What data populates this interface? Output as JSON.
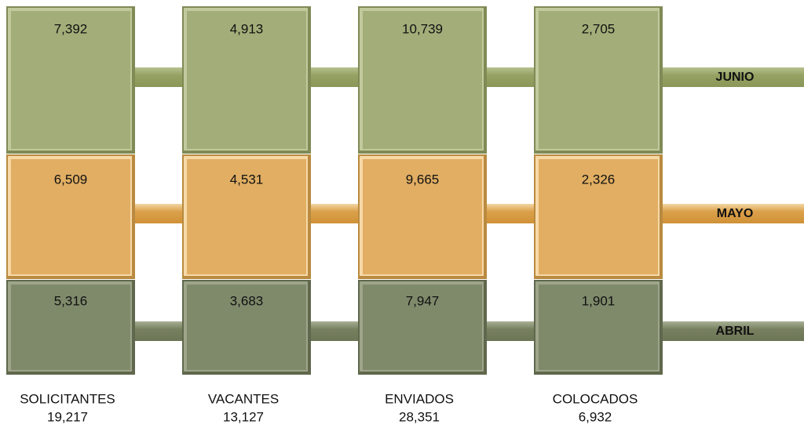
{
  "months": [
    "JUNIO",
    "MAYO",
    "ABRIL"
  ],
  "columns": [
    {
      "name": "SOLICITANTES",
      "total": "19,217",
      "values": [
        "7,392",
        "6,509",
        "5,316"
      ]
    },
    {
      "name": "VACANTES",
      "total": "13,127",
      "values": [
        "4,913",
        "4,531",
        "3,683"
      ]
    },
    {
      "name": "ENVIADOS",
      "total": "28,351",
      "values": [
        "10,739",
        "9,665",
        "7,947"
      ]
    },
    {
      "name": "COLOCADOS",
      "total": "6,932",
      "values": [
        "2,705",
        "2,326",
        "1,901"
      ]
    }
  ]
}
